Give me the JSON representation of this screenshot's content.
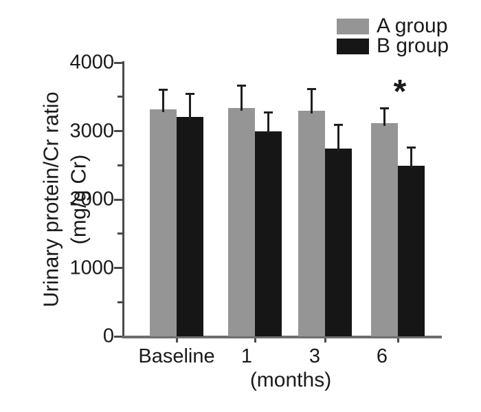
{
  "figure": {
    "y_axis_title_line1": "Urinary protein/Cr ratio",
    "y_axis_title_line2": "(mg/g Cr)",
    "x_axis_title": "(months)",
    "significance_marker": "*"
  },
  "legend": {
    "position": "top-right",
    "items": [
      {
        "label": "A group",
        "color": "#959595"
      },
      {
        "label": "B group",
        "#comment": "",
        "color": "#161616"
      }
    ]
  },
  "chart_data": {
    "type": "bar",
    "title": "",
    "xlabel": "(months)",
    "ylabel": "Urinary protein/Cr ratio (mg/g Cr)",
    "categories": [
      "Baseline",
      "1",
      "3",
      "6"
    ],
    "series": [
      {
        "name": "A group",
        "color": "#959595",
        "values": [
          3320,
          3340,
          3300,
          3120
        ],
        "errors_upper": [
          300,
          340,
          330,
          230
        ]
      },
      {
        "name": "B group",
        "color": "#161616",
        "values": [
          3210,
          3000,
          2740,
          2490
        ],
        "errors_upper": [
          350,
          290,
          370,
          280
        ]
      }
    ],
    "ylim": [
      0,
      4000
    ],
    "y_major_ticks": [
      0,
      1000,
      2000,
      3000,
      4000
    ],
    "y_minor_ticks": [
      500,
      1500,
      2500,
      3500
    ],
    "error_bar_style": "upper SD with cap",
    "grid": false,
    "legend_position": "top-right",
    "annotations": [
      {
        "text": "*",
        "target": "B group at 6 months",
        "meaning": "statistically significant"
      }
    ]
  },
  "colors": {
    "background": "#ffffff",
    "text": "#1a1a1a",
    "y_axis": "#4a4a4a",
    "x_axis": "#6e6e6e",
    "error_bar": "#1f1f1f",
    "bar_a": "#959595",
    "bar_b": "#161616"
  }
}
